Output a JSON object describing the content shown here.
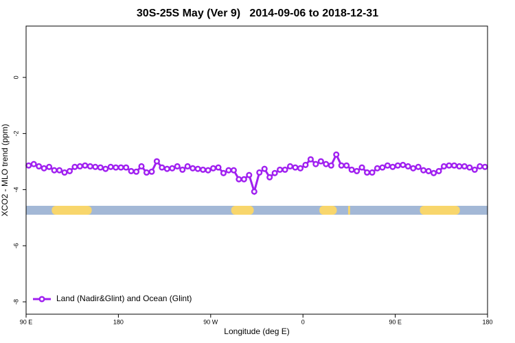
{
  "chart_data": {
    "type": "line",
    "title": "30S-25S May (Ver 9)   2014-09-06 to 2018-12-31",
    "x_label": "Longitude (deg E)",
    "y_label": "XCO2 - MLO trend (ppm)",
    "xlim": [
      90,
      540
    ],
    "ylim": [
      -8.44,
      1.83
    ],
    "xticks": [
      {
        "value": 90,
        "label": "90 E"
      },
      {
        "value": 180,
        "label": "180"
      },
      {
        "value": 270,
        "label": "90 W"
      },
      {
        "value": 360,
        "label": "0"
      },
      {
        "value": 450,
        "label": "90 E"
      },
      {
        "value": 540,
        "label": "180"
      }
    ],
    "yticks": [
      0,
      -2,
      -4,
      -6,
      -8
    ],
    "legend": "bottom left",
    "ocean_color": "#a3b8d6",
    "land_color": "#f8d66c",
    "land_mask": [
      [
        115,
        154
      ],
      [
        290,
        312
      ],
      [
        376,
        393
      ],
      [
        404,
        406
      ],
      [
        474,
        513
      ]
    ],
    "x": [
      92.5,
      97.5,
      102.5,
      107.5,
      112.5,
      117.5,
      122.5,
      127.5,
      132.5,
      137.5,
      142.5,
      147.5,
      152.5,
      157.5,
      162.5,
      167.5,
      172.5,
      177.5,
      182.5,
      187.5,
      192.5,
      197.5,
      202.5,
      207.5,
      212.5,
      217.5,
      222.5,
      227.5,
      232.5,
      237.5,
      242.5,
      247.5,
      252.5,
      257.5,
      262.5,
      267.5,
      272.5,
      277.5,
      282.5,
      287.5,
      292.5,
      297.5,
      302.5,
      307.5,
      312.5,
      317.5,
      322.5,
      327.5,
      332.5,
      337.5,
      342.5,
      347.5,
      352.5,
      357.5,
      362.5,
      367.5,
      372.5,
      377.5,
      382.5,
      387.5,
      392.5,
      397.5,
      402.5,
      407.5,
      412.5,
      417.5,
      422.5,
      427.5,
      432.5,
      437.5,
      442.5,
      447.5,
      452.5,
      457.5,
      462.5,
      467.5,
      472.5,
      477.5,
      482.5,
      487.5,
      492.5,
      497.5,
      502.5,
      507.5,
      512.5,
      517.5,
      522.5,
      527.5,
      532.5,
      537.5
    ],
    "series": [
      {
        "name": "Land (Nadir&Glint) and Ocean (Glint)",
        "color": "#a020f0",
        "values": [
          -3.14,
          -3.09,
          -3.17,
          -3.24,
          -3.19,
          -3.31,
          -3.31,
          -3.39,
          -3.34,
          -3.19,
          -3.17,
          -3.14,
          -3.17,
          -3.19,
          -3.21,
          -3.26,
          -3.19,
          -3.21,
          -3.21,
          -3.21,
          -3.34,
          -3.36,
          -3.17,
          -3.39,
          -3.36,
          -2.99,
          -3.21,
          -3.26,
          -3.24,
          -3.17,
          -3.29,
          -3.17,
          -3.24,
          -3.26,
          -3.29,
          -3.31,
          -3.24,
          -3.21,
          -3.41,
          -3.31,
          -3.31,
          -3.63,
          -3.63,
          -3.48,
          -4.07,
          -3.39,
          -3.26,
          -3.56,
          -3.41,
          -3.29,
          -3.29,
          -3.17,
          -3.21,
          -3.24,
          -3.12,
          -2.92,
          -3.09,
          -2.99,
          -3.09,
          -3.14,
          -2.75,
          -3.14,
          -3.14,
          -3.29,
          -3.34,
          -3.21,
          -3.39,
          -3.39,
          -3.24,
          -3.21,
          -3.14,
          -3.19,
          -3.14,
          -3.12,
          -3.17,
          -3.24,
          -3.19,
          -3.31,
          -3.34,
          -3.41,
          -3.34,
          -3.17,
          -3.14,
          -3.14,
          -3.17,
          -3.17,
          -3.21,
          -3.29,
          -3.17,
          -3.19
        ]
      }
    ]
  }
}
